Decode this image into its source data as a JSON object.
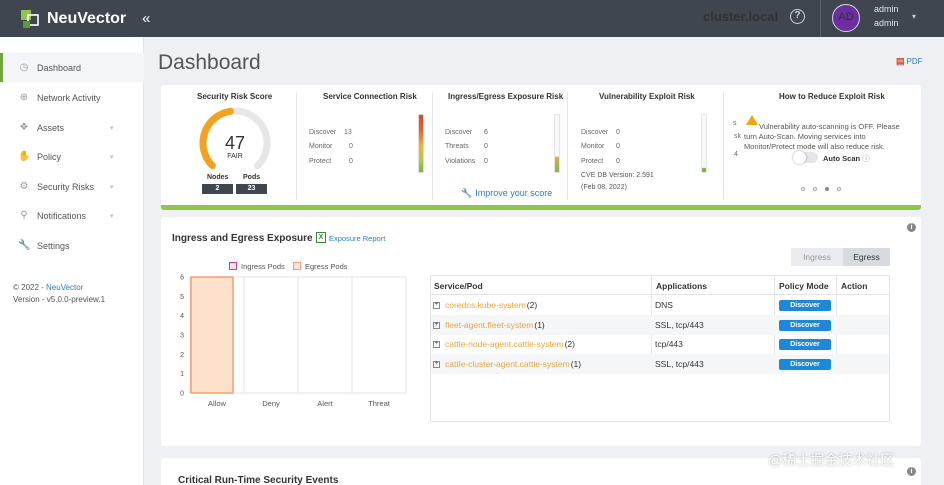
{
  "brand": {
    "name": "NeuVector"
  },
  "header": {
    "collapse_icon": "«",
    "cluster": "cluster.local",
    "help_icon": "?",
    "avatar_initials": "AD",
    "username": "admin",
    "role": "admin",
    "caret": "▾"
  },
  "sidebar": {
    "items": [
      {
        "label": "Dashboard",
        "icon": "speedometer-icon",
        "glyph": "◷"
      },
      {
        "label": "Network Activity",
        "icon": "globe-icon",
        "glyph": "⊕"
      },
      {
        "label": "Assets",
        "icon": "cubes-icon",
        "glyph": "❖"
      },
      {
        "label": "Policy",
        "icon": "hand-icon",
        "glyph": "✋"
      },
      {
        "label": "Security Risks",
        "icon": "gears-icon",
        "glyph": "⚙"
      },
      {
        "label": "Notifications",
        "icon": "bell-icon",
        "glyph": "⚲"
      },
      {
        "label": "Settings",
        "icon": "wrench-icon",
        "glyph": "🔧"
      }
    ],
    "chevron": "▾",
    "footer_copyright": "© 2022 - ",
    "footer_link": "NeuVector",
    "footer_version": "Version - v5.0.0-preview.1"
  },
  "page": {
    "title": "Dashboard",
    "pdf_label": "PDF"
  },
  "summary": {
    "security_risk": {
      "title": "Security Risk Score",
      "score": "47",
      "rating": "FAIR",
      "score_value": 47,
      "nodes_label": "Nodes",
      "nodes": "2",
      "pods_label": "Pods",
      "pods": "23"
    },
    "service_connection": {
      "title": "Service Connection Risk",
      "discover_label": "Discover",
      "discover": "13",
      "monitor_label": "Monitor",
      "monitor": "0",
      "protect_label": "Protect",
      "protect": "0"
    },
    "ingress_egress": {
      "title": "Ingress/Egress Exposure Risk",
      "discover_label": "Discover",
      "discover": "6",
      "threats_label": "Threats",
      "threats": "0",
      "violations_label": "Violations",
      "violations": "0"
    },
    "vulnerability": {
      "title": "Vulnerability Exploit Risk",
      "discover_label": "Discover",
      "discover": "0",
      "monitor_label": "Monitor",
      "monitor": "0",
      "protect_label": "Protect",
      "protect": "0",
      "cve_version": "CVE DB Version: 2.591",
      "cve_date": "(Feb 08, 2022)"
    },
    "improve_link": "Improve your score",
    "exploit": {
      "title": "How to Reduce Exploit Risk",
      "message": "Vulnerability auto-scanning is OFF. Please turn Auto-Scan. Moving services into Monitor/Protect mode will also reduce risk.",
      "toggle_label": "Auto Scan",
      "clip_s": "s",
      "clip_sk": "sk",
      "clip_4": "4"
    }
  },
  "exposure": {
    "title": "Ingress and Egress Exposure",
    "export_label": "Exposure Report",
    "toggle": {
      "ingress": "Ingress",
      "egress": "Egress",
      "selected": "Egress"
    },
    "table": {
      "headers": [
        "Service/Pod",
        "Applications",
        "Policy Mode",
        "Action"
      ],
      "rows": [
        {
          "service": "coredns.kube-system",
          "count": "(2)",
          "apps": "DNS",
          "mode": "Discover"
        },
        {
          "service": "fleet-agent.fleet-system",
          "count": "(1)",
          "apps": "SSL, tcp/443",
          "mode": "Discover"
        },
        {
          "service": "cattle-node-agent.cattle-system",
          "count": "(2)",
          "apps": "tcp/443",
          "mode": "Discover"
        },
        {
          "service": "cattle-cluster-agent.cattle-system",
          "count": "(1)",
          "apps": "SSL, tcp/443",
          "mode": "Discover"
        }
      ]
    }
  },
  "chart_data": {
    "type": "bar",
    "categories": [
      "Allow",
      "Deny",
      "Alert",
      "Threat"
    ],
    "series": [
      {
        "name": "Ingress Pods",
        "values": [
          0,
          0,
          0,
          0
        ],
        "color": "#d63a8c"
      },
      {
        "name": "Egress Pods",
        "values": [
          6,
          0,
          0,
          0
        ],
        "color": "#f0a070"
      }
    ],
    "ylim": [
      0,
      6
    ],
    "yticks": [
      "0",
      "1",
      "2",
      "3",
      "4",
      "5",
      "6"
    ],
    "legend": "top"
  },
  "events": {
    "title": "Critical Run-Time Security Events"
  },
  "watermark": "@稀土掘金技术社区",
  "colors": {
    "accent_green": "#8fc54b",
    "link_blue": "#2d7bc4",
    "button_blue": "#1e88d8",
    "gauge_orange": "#f4a020",
    "topbar": "#3f4650"
  }
}
